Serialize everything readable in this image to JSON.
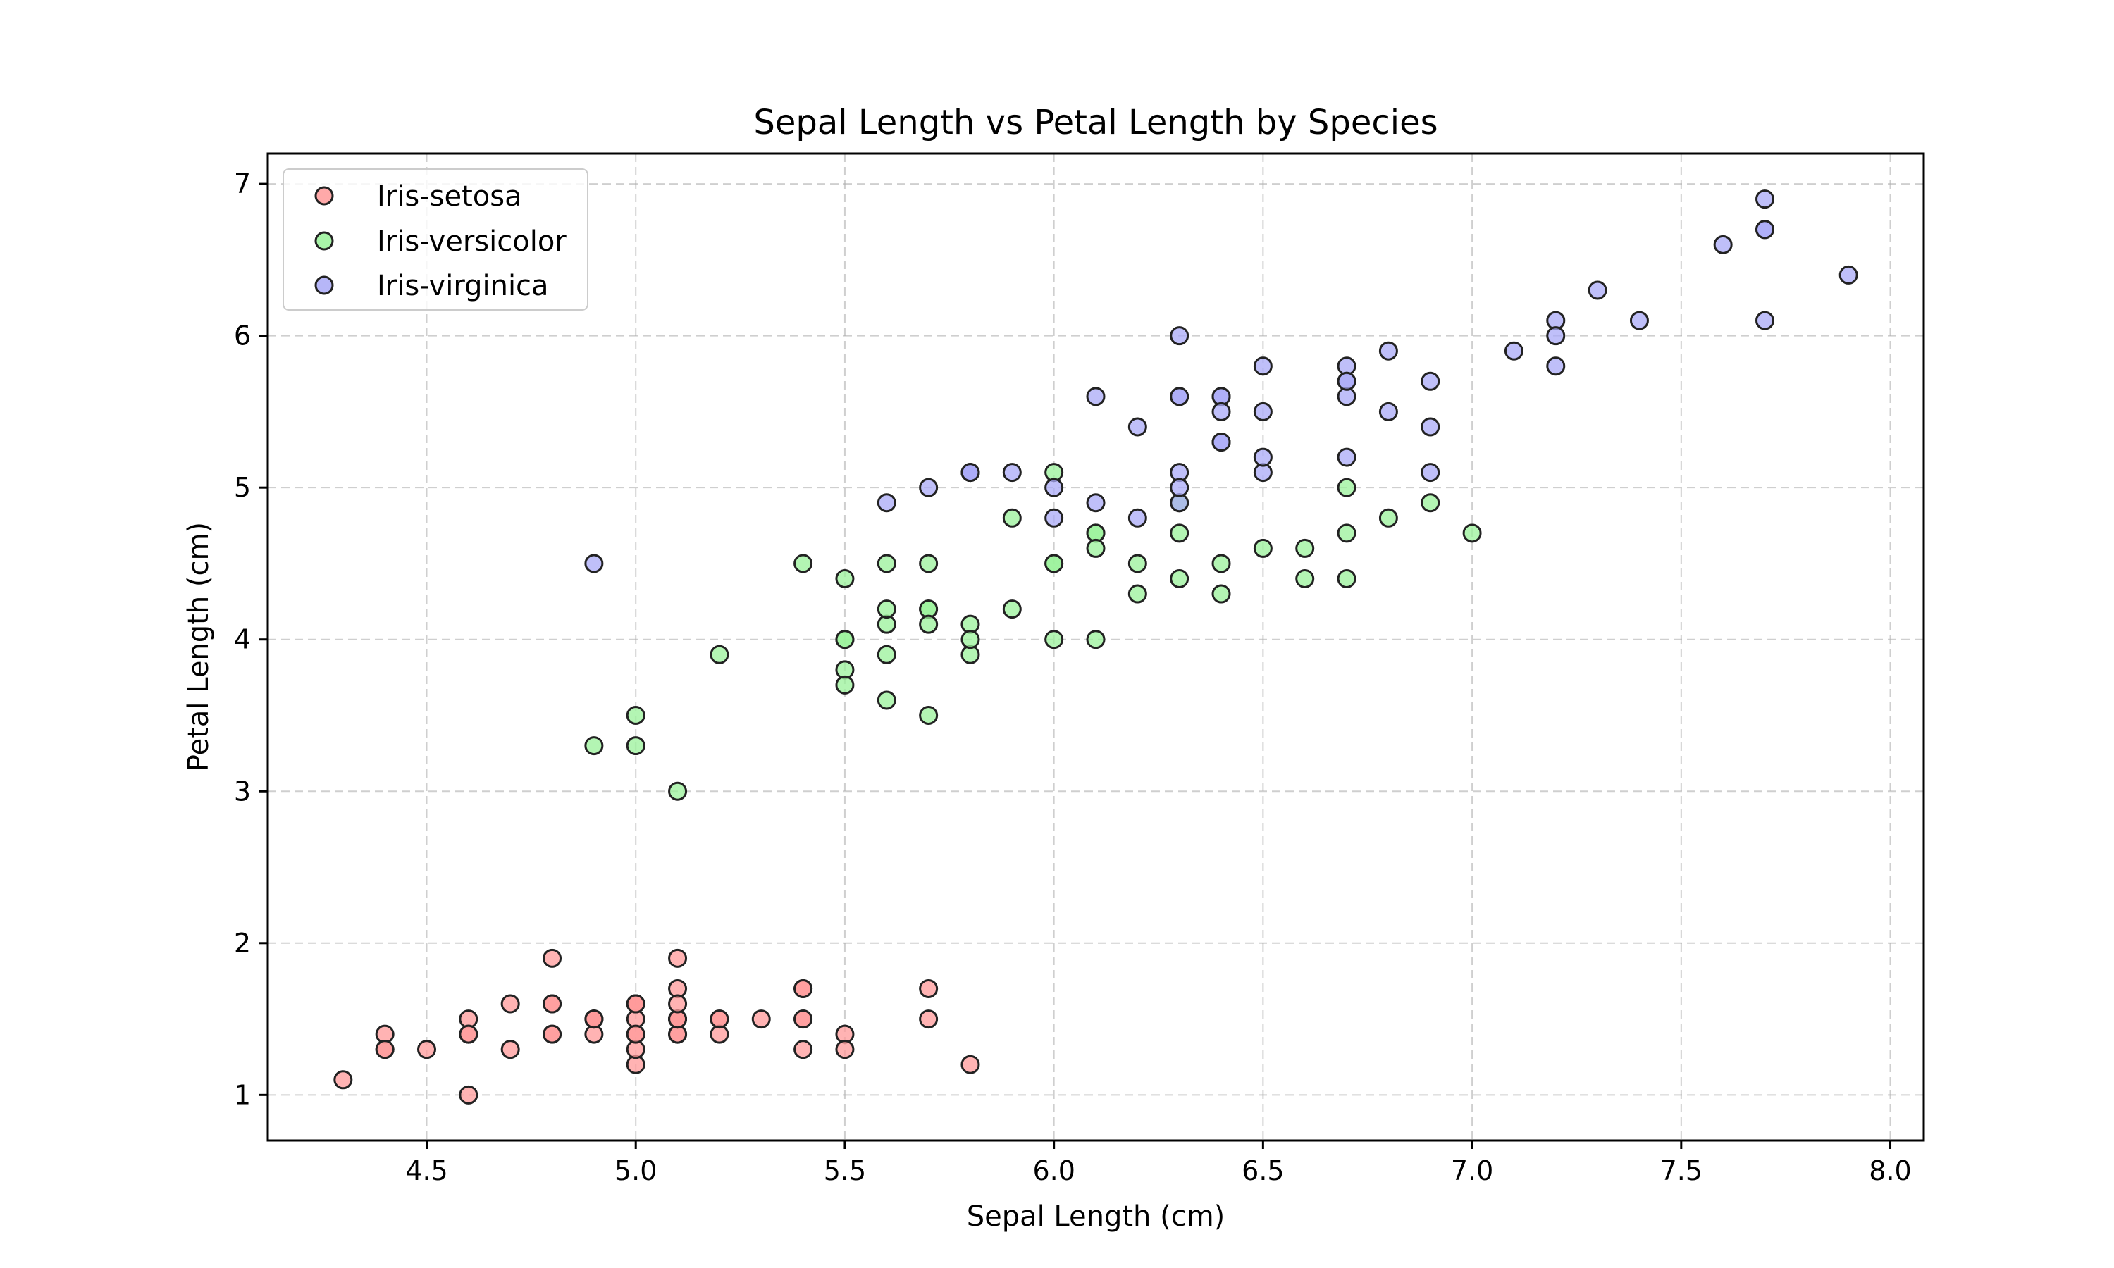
{
  "chart_data": {
    "type": "scatter",
    "title": "Sepal Length vs Petal Length by Species",
    "xlabel": "Sepal Length (cm)",
    "ylabel": "Petal Length (cm)",
    "xlim": [
      4.12,
      8.08
    ],
    "ylim": [
      0.7,
      7.2
    ],
    "xticks": [
      "4.5",
      "5.0",
      "5.5",
      "6.0",
      "6.5",
      "7.0",
      "7.5",
      "8.0"
    ],
    "yticks": [
      "1",
      "2",
      "3",
      "4",
      "5",
      "6",
      "7"
    ],
    "grid": true,
    "legend_position": "top-left",
    "series": [
      {
        "name": "Iris-setosa",
        "color": "#ff9a9a",
        "points": [
          [
            5.1,
            1.4
          ],
          [
            4.9,
            1.4
          ],
          [
            4.7,
            1.3
          ],
          [
            4.6,
            1.5
          ],
          [
            5.0,
            1.4
          ],
          [
            5.4,
            1.7
          ],
          [
            4.6,
            1.4
          ],
          [
            5.0,
            1.5
          ],
          [
            4.4,
            1.4
          ],
          [
            4.9,
            1.5
          ],
          [
            5.4,
            1.5
          ],
          [
            4.8,
            1.6
          ],
          [
            4.8,
            1.4
          ],
          [
            4.3,
            1.1
          ],
          [
            5.8,
            1.2
          ],
          [
            5.7,
            1.5
          ],
          [
            5.4,
            1.3
          ],
          [
            5.1,
            1.4
          ],
          [
            5.7,
            1.7
          ],
          [
            5.1,
            1.5
          ],
          [
            5.4,
            1.7
          ],
          [
            5.1,
            1.5
          ],
          [
            4.6,
            1.0
          ],
          [
            5.1,
            1.7
          ],
          [
            4.8,
            1.9
          ],
          [
            5.0,
            1.6
          ],
          [
            5.0,
            1.6
          ],
          [
            5.2,
            1.5
          ],
          [
            5.2,
            1.4
          ],
          [
            4.7,
            1.6
          ],
          [
            4.8,
            1.6
          ],
          [
            5.4,
            1.5
          ],
          [
            5.2,
            1.5
          ],
          [
            5.5,
            1.4
          ],
          [
            4.9,
            1.5
          ],
          [
            5.0,
            1.2
          ],
          [
            5.5,
            1.3
          ],
          [
            4.9,
            1.5
          ],
          [
            4.4,
            1.3
          ],
          [
            5.1,
            1.5
          ],
          [
            5.0,
            1.3
          ],
          [
            4.5,
            1.3
          ],
          [
            4.4,
            1.3
          ],
          [
            5.0,
            1.6
          ],
          [
            5.1,
            1.9
          ],
          [
            4.8,
            1.4
          ],
          [
            5.1,
            1.6
          ],
          [
            4.6,
            1.4
          ],
          [
            5.3,
            1.5
          ],
          [
            5.0,
            1.4
          ]
        ]
      },
      {
        "name": "Iris-versicolor",
        "color": "#99f299",
        "points": [
          [
            7.0,
            4.7
          ],
          [
            6.4,
            4.5
          ],
          [
            6.9,
            4.9
          ],
          [
            5.5,
            4.0
          ],
          [
            6.5,
            4.6
          ],
          [
            5.7,
            4.5
          ],
          [
            6.3,
            4.7
          ],
          [
            4.9,
            3.3
          ],
          [
            6.6,
            4.6
          ],
          [
            5.2,
            3.9
          ],
          [
            5.0,
            3.5
          ],
          [
            5.9,
            4.2
          ],
          [
            6.0,
            4.0
          ],
          [
            6.1,
            4.7
          ],
          [
            5.6,
            3.6
          ],
          [
            6.7,
            4.4
          ],
          [
            5.6,
            4.5
          ],
          [
            5.8,
            4.1
          ],
          [
            6.2,
            4.5
          ],
          [
            5.6,
            3.9
          ],
          [
            5.9,
            4.8
          ],
          [
            6.1,
            4.0
          ],
          [
            6.3,
            4.9
          ],
          [
            6.1,
            4.7
          ],
          [
            6.4,
            4.3
          ],
          [
            6.6,
            4.4
          ],
          [
            6.8,
            4.8
          ],
          [
            6.7,
            5.0
          ],
          [
            6.0,
            4.5
          ],
          [
            5.7,
            3.5
          ],
          [
            5.5,
            3.8
          ],
          [
            5.5,
            3.7
          ],
          [
            5.8,
            3.9
          ],
          [
            6.0,
            5.1
          ],
          [
            5.4,
            4.5
          ],
          [
            6.0,
            4.5
          ],
          [
            6.7,
            4.7
          ],
          [
            6.3,
            4.4
          ],
          [
            5.6,
            4.1
          ],
          [
            5.5,
            4.0
          ],
          [
            5.5,
            4.4
          ],
          [
            6.1,
            4.6
          ],
          [
            5.8,
            4.0
          ],
          [
            5.0,
            3.3
          ],
          [
            5.6,
            4.2
          ],
          [
            5.7,
            4.2
          ],
          [
            5.7,
            4.2
          ],
          [
            6.2,
            4.3
          ],
          [
            5.1,
            3.0
          ],
          [
            5.7,
            4.1
          ]
        ]
      },
      {
        "name": "Iris-virginica",
        "color": "#a9a9f7",
        "points": [
          [
            6.3,
            6.0
          ],
          [
            5.8,
            5.1
          ],
          [
            7.1,
            5.9
          ],
          [
            6.3,
            5.6
          ],
          [
            6.5,
            5.8
          ],
          [
            7.6,
            6.6
          ],
          [
            4.9,
            4.5
          ],
          [
            7.3,
            6.3
          ],
          [
            6.7,
            5.8
          ],
          [
            7.2,
            6.1
          ],
          [
            6.5,
            5.1
          ],
          [
            6.4,
            5.3
          ],
          [
            6.8,
            5.5
          ],
          [
            5.7,
            5.0
          ],
          [
            5.8,
            5.1
          ],
          [
            6.4,
            5.3
          ],
          [
            6.5,
            5.5
          ],
          [
            7.7,
            6.7
          ],
          [
            7.7,
            6.9
          ],
          [
            6.0,
            5.0
          ],
          [
            6.9,
            5.7
          ],
          [
            5.6,
            4.9
          ],
          [
            7.7,
            6.7
          ],
          [
            6.3,
            4.9
          ],
          [
            6.7,
            5.7
          ],
          [
            7.2,
            6.0
          ],
          [
            6.2,
            4.8
          ],
          [
            6.1,
            4.9
          ],
          [
            6.4,
            5.6
          ],
          [
            7.2,
            5.8
          ],
          [
            7.4,
            6.1
          ],
          [
            7.9,
            6.4
          ],
          [
            6.4,
            5.6
          ],
          [
            6.3,
            5.1
          ],
          [
            6.1,
            5.6
          ],
          [
            7.7,
            6.1
          ],
          [
            6.3,
            5.6
          ],
          [
            6.4,
            5.5
          ],
          [
            6.0,
            4.8
          ],
          [
            6.9,
            5.4
          ],
          [
            6.7,
            5.6
          ],
          [
            6.9,
            5.1
          ],
          [
            5.8,
            5.1
          ],
          [
            6.8,
            5.9
          ],
          [
            6.7,
            5.7
          ],
          [
            6.7,
            5.2
          ],
          [
            6.3,
            5.0
          ],
          [
            6.5,
            5.2
          ],
          [
            6.2,
            5.4
          ],
          [
            5.9,
            5.1
          ]
        ]
      }
    ]
  }
}
